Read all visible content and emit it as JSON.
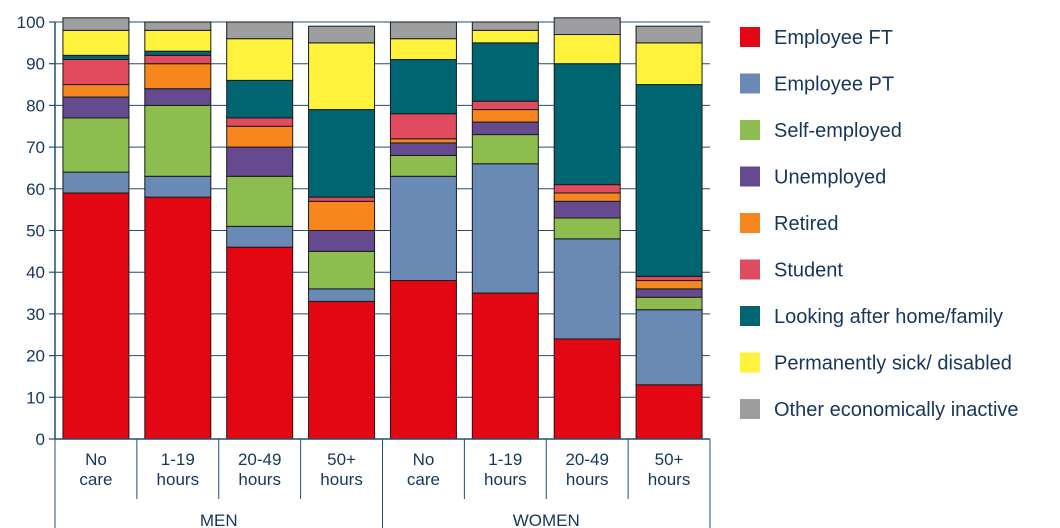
{
  "chart_data": {
    "type": "bar",
    "stacked": true,
    "title": "",
    "xlabel": "",
    "ylabel": "",
    "ylim": [
      0,
      100
    ],
    "yticks": [
      0,
      10,
      20,
      30,
      40,
      50,
      60,
      70,
      80,
      90,
      100
    ],
    "groups": [
      {
        "label": "MEN",
        "categories": [
          0,
          1,
          2,
          3
        ]
      },
      {
        "label": "WOMEN",
        "categories": [
          4,
          5,
          6,
          7
        ]
      }
    ],
    "categories": [
      [
        "No",
        "care"
      ],
      [
        "1-19",
        "hours"
      ],
      [
        "20-49",
        "hours"
      ],
      [
        "50+",
        "hours"
      ],
      [
        "No",
        "care"
      ],
      [
        "1-19",
        "hours"
      ],
      [
        "20-49",
        "hours"
      ],
      [
        "50+",
        "hours"
      ]
    ],
    "series": [
      {
        "name": "Employee FT",
        "color": "#e30613",
        "values": [
          59,
          58,
          46,
          33,
          38,
          35,
          24,
          13
        ]
      },
      {
        "name": "Employee PT",
        "color": "#6a8ab6",
        "values": [
          5,
          5,
          5,
          3,
          25,
          31,
          24,
          18
        ]
      },
      {
        "name": "Self-employed",
        "color": "#8cbd4e",
        "values": [
          13,
          17,
          12,
          9,
          5,
          7,
          5,
          3
        ]
      },
      {
        "name": "Unemployed",
        "color": "#654a8f",
        "values": [
          5,
          4,
          7,
          5,
          3,
          3,
          4,
          2
        ]
      },
      {
        "name": "Retired",
        "color": "#f7861f",
        "values": [
          3,
          6,
          5,
          7,
          1,
          3,
          2,
          2
        ]
      },
      {
        "name": "Student",
        "color": "#e04b5f",
        "values": [
          6,
          2,
          2,
          1,
          6,
          2,
          2,
          1
        ]
      },
      {
        "name": "Looking after home/family",
        "color": "#006570",
        "values": [
          1,
          1,
          9,
          21,
          13,
          14,
          29,
          46
        ]
      },
      {
        "name": "Permanently sick/ disabled",
        "color": "#fff23d",
        "values": [
          6,
          5,
          10,
          16,
          5,
          3,
          7,
          10
        ]
      },
      {
        "name": "Other economically inactive",
        "color": "#9d9ea0",
        "values": [
          3,
          2,
          4,
          4,
          4,
          2,
          4,
          4
        ]
      }
    ],
    "legend_position": "right",
    "grid": true
  }
}
